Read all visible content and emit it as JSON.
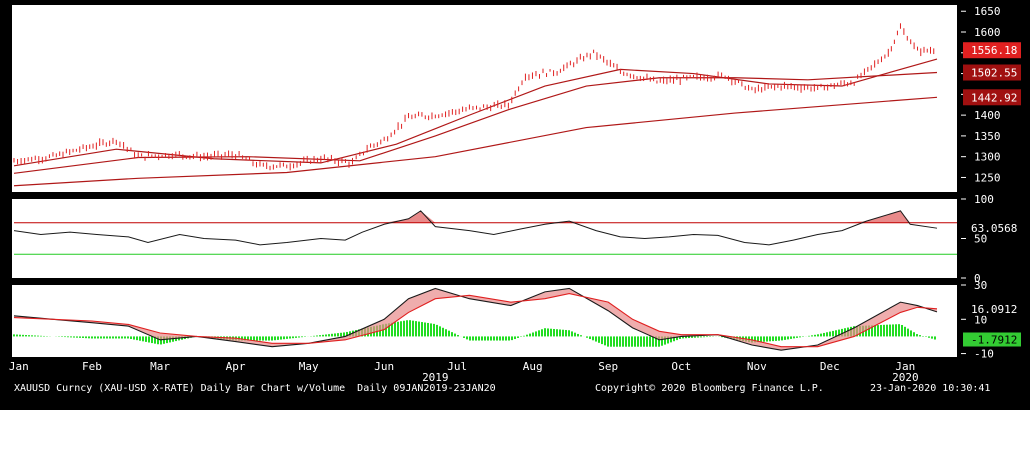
{
  "chart_data": [
    {
      "panel": "price",
      "type": "bar",
      "x_range": [
        "2019-01-09",
        "2020-01-23"
      ],
      "ylim": [
        1215,
        1665
      ],
      "ticks": [
        1250,
        1300,
        1350,
        1400,
        1450,
        1500,
        1550,
        1600,
        1650
      ],
      "last_price": 1556.18,
      "price_series": [
        {
          "date": "2019-01-09",
          "value": 1290
        },
        {
          "date": "2019-01-25",
          "value": 1300
        },
        {
          "date": "2019-02-05",
          "value": 1318
        },
        {
          "date": "2019-02-20",
          "value": 1340
        },
        {
          "date": "2019-03-01",
          "value": 1300
        },
        {
          "date": "2019-03-15",
          "value": 1305
        },
        {
          "date": "2019-03-28",
          "value": 1300
        },
        {
          "date": "2019-04-10",
          "value": 1305
        },
        {
          "date": "2019-04-20",
          "value": 1278
        },
        {
          "date": "2019-05-01",
          "value": 1278
        },
        {
          "date": "2019-05-15",
          "value": 1296
        },
        {
          "date": "2019-05-28",
          "value": 1285
        },
        {
          "date": "2019-06-03",
          "value": 1320
        },
        {
          "date": "2019-06-10",
          "value": 1340
        },
        {
          "date": "2019-06-20",
          "value": 1395
        },
        {
          "date": "2019-07-01",
          "value": 1400
        },
        {
          "date": "2019-07-15",
          "value": 1415
        },
        {
          "date": "2019-07-31",
          "value": 1425
        },
        {
          "date": "2019-08-07",
          "value": 1495
        },
        {
          "date": "2019-08-20",
          "value": 1505
        },
        {
          "date": "2019-09-04",
          "value": 1550
        },
        {
          "date": "2019-09-15",
          "value": 1505
        },
        {
          "date": "2019-09-30",
          "value": 1480
        },
        {
          "date": "2019-10-15",
          "value": 1490
        },
        {
          "date": "2019-10-28",
          "value": 1495
        },
        {
          "date": "2019-11-08",
          "value": 1460
        },
        {
          "date": "2019-11-20",
          "value": 1470
        },
        {
          "date": "2019-12-05",
          "value": 1465
        },
        {
          "date": "2019-12-20",
          "value": 1480
        },
        {
          "date": "2020-01-03",
          "value": 1550
        },
        {
          "date": "2020-01-08",
          "value": 1610
        },
        {
          "date": "2020-01-15",
          "value": 1555
        },
        {
          "date": "2020-01-23",
          "value": 1556.18
        }
      ],
      "moving_averages": [
        {
          "points": [
            {
              "date": "2019-01-09",
              "value": 1278
            },
            {
              "date": "2019-02-20",
              "value": 1318
            },
            {
              "date": "2019-04-01",
              "value": 1295
            },
            {
              "date": "2019-05-15",
              "value": 1285
            },
            {
              "date": "2019-06-15",
              "value": 1330
            },
            {
              "date": "2019-07-15",
              "value": 1400
            },
            {
              "date": "2019-08-15",
              "value": 1470
            },
            {
              "date": "2019-09-15",
              "value": 1510
            },
            {
              "date": "2019-10-15",
              "value": 1500
            },
            {
              "date": "2019-11-15",
              "value": 1475
            },
            {
              "date": "2019-12-15",
              "value": 1470
            },
            {
              "date": "2020-01-23",
              "value": 1535
            }
          ]
        },
        {
          "points": [
            {
              "date": "2019-01-09",
              "value": 1260
            },
            {
              "date": "2019-03-01",
              "value": 1298
            },
            {
              "date": "2019-04-15",
              "value": 1300
            },
            {
              "date": "2019-05-31",
              "value": 1290
            },
            {
              "date": "2019-07-01",
              "value": 1350
            },
            {
              "date": "2019-08-01",
              "value": 1415
            },
            {
              "date": "2019-09-01",
              "value": 1470
            },
            {
              "date": "2019-10-01",
              "value": 1490
            },
            {
              "date": "2019-11-01",
              "value": 1490
            },
            {
              "date": "2019-12-01",
              "value": 1485
            },
            {
              "date": "2020-01-23",
              "value": 1502.55
            }
          ]
        },
        {
          "points": [
            {
              "date": "2019-01-09",
              "value": 1230
            },
            {
              "date": "2019-03-01",
              "value": 1248
            },
            {
              "date": "2019-05-01",
              "value": 1262
            },
            {
              "date": "2019-07-01",
              "value": 1300
            },
            {
              "date": "2019-09-01",
              "value": 1370
            },
            {
              "date": "2019-11-01",
              "value": 1405
            },
            {
              "date": "2020-01-23",
              "value": 1442.92
            }
          ]
        }
      ],
      "labels": [
        {
          "value": 1556.18,
          "text": "1556.18",
          "color": "#e02020"
        },
        {
          "value": 1502.55,
          "text": "1502.55",
          "color": "#a01010"
        },
        {
          "value": 1442.92,
          "text": "1442.92",
          "color": "#a01010"
        }
      ]
    },
    {
      "panel": "rsi",
      "type": "line",
      "ylim": [
        0,
        100
      ],
      "ticks": [
        0,
        50,
        100
      ],
      "upper_line": 70,
      "lower_line": 30,
      "last_value": 63.0568,
      "series": [
        {
          "date": "2019-01-09",
          "value": 60
        },
        {
          "date": "2019-01-20",
          "value": 55
        },
        {
          "date": "2019-02-01",
          "value": 58
        },
        {
          "date": "2019-02-12",
          "value": 55
        },
        {
          "date": "2019-02-25",
          "value": 52
        },
        {
          "date": "2019-03-05",
          "value": 45
        },
        {
          "date": "2019-03-18",
          "value": 55
        },
        {
          "date": "2019-03-28",
          "value": 50
        },
        {
          "date": "2019-04-10",
          "value": 48
        },
        {
          "date": "2019-04-20",
          "value": 42
        },
        {
          "date": "2019-05-01",
          "value": 45
        },
        {
          "date": "2019-05-15",
          "value": 50
        },
        {
          "date": "2019-05-25",
          "value": 48
        },
        {
          "date": "2019-06-01",
          "value": 58
        },
        {
          "date": "2019-06-10",
          "value": 68
        },
        {
          "date": "2019-06-20",
          "value": 75
        },
        {
          "date": "2019-06-25",
          "value": 85
        },
        {
          "date": "2019-07-01",
          "value": 65
        },
        {
          "date": "2019-07-15",
          "value": 60
        },
        {
          "date": "2019-07-25",
          "value": 55
        },
        {
          "date": "2019-08-05",
          "value": 62
        },
        {
          "date": "2019-08-15",
          "value": 68
        },
        {
          "date": "2019-08-25",
          "value": 72
        },
        {
          "date": "2019-09-05",
          "value": 60
        },
        {
          "date": "2019-09-15",
          "value": 52
        },
        {
          "date": "2019-09-25",
          "value": 50
        },
        {
          "date": "2019-10-05",
          "value": 52
        },
        {
          "date": "2019-10-15",
          "value": 55
        },
        {
          "date": "2019-10-25",
          "value": 54
        },
        {
          "date": "2019-11-05",
          "value": 45
        },
        {
          "date": "2019-11-15",
          "value": 42
        },
        {
          "date": "2019-11-25",
          "value": 48
        },
        {
          "date": "2019-12-05",
          "value": 55
        },
        {
          "date": "2019-12-15",
          "value": 60
        },
        {
          "date": "2019-12-25",
          "value": 72
        },
        {
          "date": "2020-01-08",
          "value": 85
        },
        {
          "date": "2020-01-12",
          "value": 68
        },
        {
          "date": "2020-01-23",
          "value": 63.0568
        }
      ]
    },
    {
      "panel": "macd",
      "type": "line",
      "ylim": [
        -12,
        30
      ],
      "ticks": [
        -10,
        10,
        30
      ],
      "last_signal": 16.0912,
      "last_histogram": -1.7912,
      "macd": [
        {
          "date": "2019-01-09",
          "value": 12
        },
        {
          "date": "2019-01-25",
          "value": 10
        },
        {
          "date": "2019-02-10",
          "value": 8
        },
        {
          "date": "2019-02-25",
          "value": 6
        },
        {
          "date": "2019-03-10",
          "value": -2
        },
        {
          "date": "2019-03-25",
          "value": 0
        },
        {
          "date": "2019-04-10",
          "value": -3
        },
        {
          "date": "2019-04-25",
          "value": -6
        },
        {
          "date": "2019-05-10",
          "value": -4
        },
        {
          "date": "2019-05-25",
          "value": 0
        },
        {
          "date": "2019-06-10",
          "value": 10
        },
        {
          "date": "2019-06-20",
          "value": 22
        },
        {
          "date": "2019-07-01",
          "value": 28
        },
        {
          "date": "2019-07-15",
          "value": 22
        },
        {
          "date": "2019-08-01",
          "value": 18
        },
        {
          "date": "2019-08-15",
          "value": 26
        },
        {
          "date": "2019-08-25",
          "value": 28
        },
        {
          "date": "2019-09-10",
          "value": 15
        },
        {
          "date": "2019-09-20",
          "value": 5
        },
        {
          "date": "2019-10-01",
          "value": -2
        },
        {
          "date": "2019-10-10",
          "value": 0
        },
        {
          "date": "2019-10-25",
          "value": 1
        },
        {
          "date": "2019-11-08",
          "value": -5
        },
        {
          "date": "2019-11-20",
          "value": -8
        },
        {
          "date": "2019-12-05",
          "value": -5
        },
        {
          "date": "2019-12-20",
          "value": 5
        },
        {
          "date": "2020-01-08",
          "value": 20
        },
        {
          "date": "2020-01-15",
          "value": 18
        },
        {
          "date": "2020-01-23",
          "value": 14.3
        }
      ],
      "signal": [
        {
          "date": "2019-01-09",
          "value": 11
        },
        {
          "date": "2019-01-25",
          "value": 10
        },
        {
          "date": "2019-02-10",
          "value": 9
        },
        {
          "date": "2019-02-25",
          "value": 7
        },
        {
          "date": "2019-03-10",
          "value": 2
        },
        {
          "date": "2019-03-25",
          "value": 0
        },
        {
          "date": "2019-04-10",
          "value": -1
        },
        {
          "date": "2019-04-25",
          "value": -4
        },
        {
          "date": "2019-05-10",
          "value": -4
        },
        {
          "date": "2019-05-25",
          "value": -2
        },
        {
          "date": "2019-06-10",
          "value": 4
        },
        {
          "date": "2019-06-20",
          "value": 14
        },
        {
          "date": "2019-07-01",
          "value": 22
        },
        {
          "date": "2019-07-15",
          "value": 24
        },
        {
          "date": "2019-08-01",
          "value": 20
        },
        {
          "date": "2019-08-15",
          "value": 22
        },
        {
          "date": "2019-08-25",
          "value": 25
        },
        {
          "date": "2019-09-10",
          "value": 20
        },
        {
          "date": "2019-09-20",
          "value": 10
        },
        {
          "date": "2019-10-01",
          "value": 3
        },
        {
          "date": "2019-10-10",
          "value": 1
        },
        {
          "date": "2019-10-25",
          "value": 1
        },
        {
          "date": "2019-11-08",
          "value": -2
        },
        {
          "date": "2019-11-20",
          "value": -6
        },
        {
          "date": "2019-12-05",
          "value": -6
        },
        {
          "date": "2019-12-20",
          "value": 0
        },
        {
          "date": "2020-01-08",
          "value": 14
        },
        {
          "date": "2020-01-15",
          "value": 17
        },
        {
          "date": "2020-01-23",
          "value": 16.0912
        }
      ]
    }
  ],
  "x_axis": {
    "months": [
      {
        "label": "Jan",
        "date": "2019-01-11"
      },
      {
        "label": "Feb",
        "date": "2019-02-10"
      },
      {
        "label": "Mar",
        "date": "2019-03-10"
      },
      {
        "label": "Apr",
        "date": "2019-04-10"
      },
      {
        "label": "May",
        "date": "2019-05-10"
      },
      {
        "label": "Jun",
        "date": "2019-06-10"
      },
      {
        "label": "Jul",
        "date": "2019-07-10"
      },
      {
        "label": "Aug",
        "date": "2019-08-10"
      },
      {
        "label": "Sep",
        "date": "2019-09-10"
      },
      {
        "label": "Oct",
        "date": "2019-10-10"
      },
      {
        "label": "Nov",
        "date": "2019-11-10"
      },
      {
        "label": "Dec",
        "date": "2019-12-10"
      },
      {
        "label": "Jan",
        "date": "2020-01-10"
      }
    ],
    "years": [
      {
        "label": "2019",
        "date": "2019-07-01"
      },
      {
        "label": "2020",
        "date": "2020-01-10"
      }
    ]
  },
  "footer": {
    "description": "XAUUSD Curncy (XAU-USD X-RATE) Daily Bar Chart w/Volume  Daily 09JAN2019-23JAN20",
    "copyright": "Copyright© 2020 Bloomberg Finance L.P.",
    "timestamp": "23-Jan-2020 10:30:41"
  },
  "colors": {
    "price": "#e02020",
    "ma": "#b01818",
    "rsi_line": "#1a1a1a",
    "rsi_upper": "#c00000",
    "rsi_lower": "#22cc22",
    "rsi_fill": "#e88a8a",
    "macd_line": "#1a1a1a",
    "signal_line": "#e02020",
    "hist_pos": "#22dd22",
    "hist_neg": "#22dd22"
  }
}
